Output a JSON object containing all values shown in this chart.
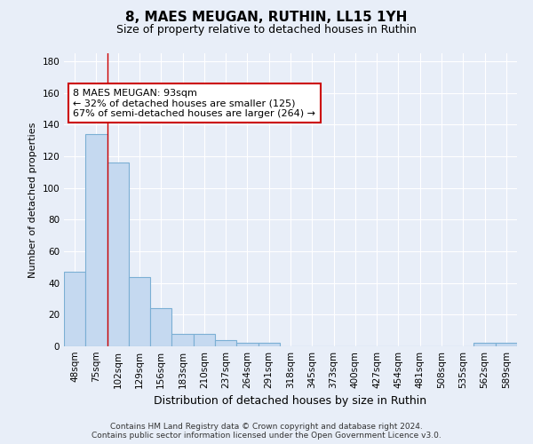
{
  "title1": "8, MAES MEUGAN, RUTHIN, LL15 1YH",
  "title2": "Size of property relative to detached houses in Ruthin",
  "xlabel": "Distribution of detached houses by size in Ruthin",
  "ylabel": "Number of detached properties",
  "footnote": "Contains HM Land Registry data © Crown copyright and database right 2024.\nContains public sector information licensed under the Open Government Licence v3.0.",
  "bar_labels": [
    "48sqm",
    "75sqm",
    "102sqm",
    "129sqm",
    "156sqm",
    "183sqm",
    "210sqm",
    "237sqm",
    "264sqm",
    "291sqm",
    "318sqm",
    "345sqm",
    "373sqm",
    "400sqm",
    "427sqm",
    "454sqm",
    "481sqm",
    "508sqm",
    "535sqm",
    "562sqm",
    "589sqm"
  ],
  "bar_values": [
    47,
    134,
    116,
    44,
    24,
    8,
    8,
    4,
    2,
    2,
    0,
    0,
    0,
    0,
    0,
    0,
    0,
    0,
    0,
    2,
    2
  ],
  "bar_color": "#c5d9f0",
  "bar_edge_color": "#7bafd4",
  "ylim": [
    0,
    185
  ],
  "yticks": [
    0,
    20,
    40,
    60,
    80,
    100,
    120,
    140,
    160,
    180
  ],
  "annotation_text": "8 MAES MEUGAN: 93sqm\n← 32% of detached houses are smaller (125)\n67% of semi-detached houses are larger (264) →",
  "annotation_box_color": "#ffffff",
  "annotation_box_edge": "#cc0000",
  "red_line_x": 1.5,
  "background_color": "#e8eef8",
  "grid_color": "#ffffff",
  "title1_fontsize": 11,
  "title2_fontsize": 9,
  "ylabel_fontsize": 8,
  "xlabel_fontsize": 9,
  "tick_fontsize": 7.5,
  "annotation_fontsize": 8,
  "footnote_fontsize": 6.5
}
